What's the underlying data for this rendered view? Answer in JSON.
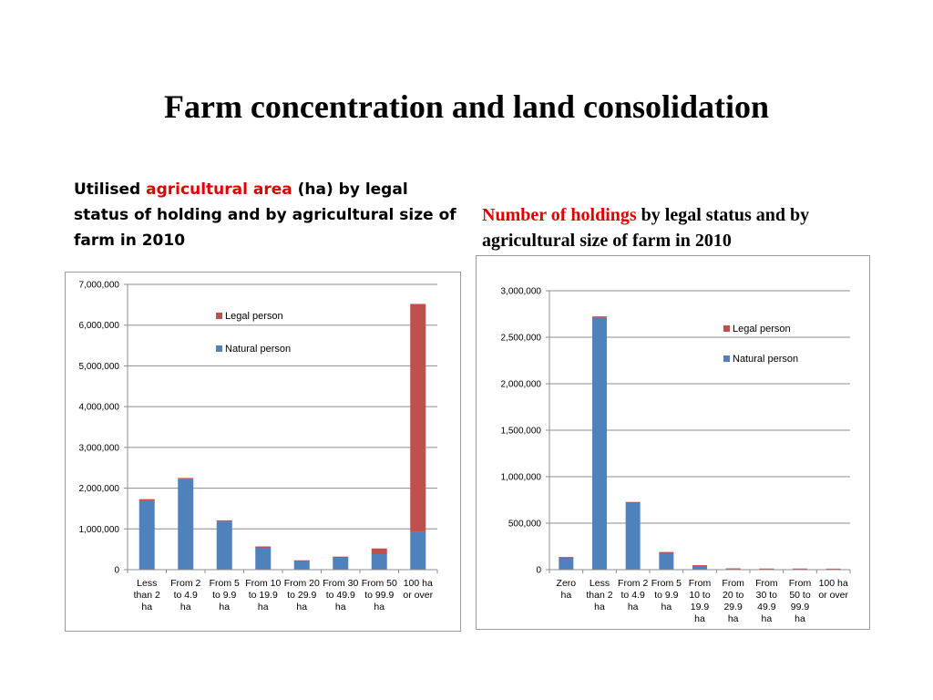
{
  "title": "Farm concentration and land consolidation",
  "captions": {
    "left": {
      "prefix": "Utilised ",
      "highlight": "agricultural area",
      "suffix": " (ha) by legal status of holding and by agricultural size of farm in 2010"
    },
    "right": {
      "highlight": "Number of holdings",
      "suffix": " by legal status and by agricultural size of farm in 2010"
    }
  },
  "colors": {
    "natural": "#4f81bd",
    "legal": "#c0504d",
    "highlight": "#e00000",
    "grid": "#8c8c8c"
  },
  "chart_data": [
    {
      "type": "bar",
      "stacked": true,
      "title": "",
      "xlabel": "",
      "ylabel": "",
      "ylim": [
        0,
        7000000
      ],
      "yticks": [
        0,
        1000000,
        2000000,
        3000000,
        4000000,
        5000000,
        6000000,
        7000000
      ],
      "ytick_labels": [
        "0",
        "1,000,000",
        "2,000,000",
        "3,000,000",
        "4,000,000",
        "5,000,000",
        "6,000,000",
        "7,000,000"
      ],
      "grid": true,
      "legend_position": "upper-center",
      "legend": [
        "Legal person",
        "Natural person"
      ],
      "categories": [
        [
          "Less",
          "than 2",
          "ha"
        ],
        [
          "From 2",
          "to 4.9",
          "ha"
        ],
        [
          "From 5",
          "to 9.9",
          "ha"
        ],
        [
          "From 10",
          "to 19.9",
          "ha"
        ],
        [
          "From 20",
          "to 29.9",
          "ha"
        ],
        [
          "From 30",
          "to 49.9",
          "ha"
        ],
        [
          "From 50",
          "to 99.9",
          "ha"
        ],
        [
          "100 ha",
          "or over"
        ]
      ],
      "series": [
        {
          "name": "Natural person",
          "values": [
            1680000,
            2220000,
            1180000,
            550000,
            210000,
            290000,
            380000,
            920000
          ]
        },
        {
          "name": "Legal person",
          "values": [
            50000,
            30000,
            30000,
            20000,
            20000,
            30000,
            140000,
            5600000
          ]
        }
      ]
    },
    {
      "type": "bar",
      "stacked": true,
      "title": "",
      "xlabel": "",
      "ylabel": "",
      "ylim": [
        0,
        3000000
      ],
      "yticks": [
        0,
        500000,
        1000000,
        1500000,
        2000000,
        2500000,
        3000000
      ],
      "ytick_labels": [
        "0",
        "500,000",
        "1,000,000",
        "1,500,000",
        "2,000,000",
        "2,500,000",
        "3,000,000"
      ],
      "grid": true,
      "legend_position": "upper-right",
      "legend": [
        "Legal person",
        "Natural person"
      ],
      "categories": [
        [
          "Zero",
          "ha"
        ],
        [
          "Less",
          "than 2",
          "ha"
        ],
        [
          "From 2",
          "to 4.9",
          "ha"
        ],
        [
          "From 5",
          "to 9.9",
          "ha"
        ],
        [
          "From",
          "10 to",
          "19.9",
          "ha"
        ],
        [
          "From",
          "20 to",
          "29.9",
          "ha"
        ],
        [
          "From",
          "30 to",
          "49.9",
          "ha"
        ],
        [
          "From",
          "50 to",
          "99.9",
          "ha"
        ],
        [
          "100 ha",
          "or over"
        ]
      ],
      "series": [
        {
          "name": "Natural person",
          "values": [
            130000,
            2710000,
            720000,
            185000,
            45000,
            12000,
            10000,
            10000,
            8000
          ]
        },
        {
          "name": "Legal person",
          "values": [
            6000,
            14000,
            8000,
            5000,
            3000,
            2000,
            2000,
            2000,
            3000
          ]
        }
      ]
    }
  ]
}
